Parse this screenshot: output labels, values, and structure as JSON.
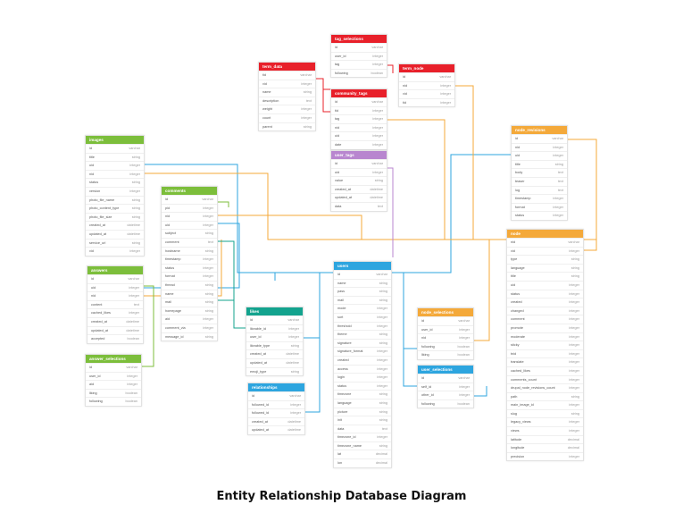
{
  "title": "Entity Relationship Database Diagram",
  "colors": {
    "red": "#e8202a",
    "green": "#7cbe3b",
    "purple": "#b886cf",
    "blue": "#2da5df",
    "teal": "#13a38e",
    "orange": "#f4a93a"
  },
  "tables": [
    {
      "name": "tag_selections",
      "color": "red",
      "fields": [
        [
          "id",
          "varchar"
        ],
        [
          "user_id",
          "integer"
        ],
        [
          "tag",
          "integer"
        ],
        [
          "following",
          "boolean"
        ]
      ]
    },
    {
      "name": "term_data",
      "color": "red",
      "fields": [
        [
          "tid",
          "varchar"
        ],
        [
          "vid",
          "integer"
        ],
        [
          "name",
          "string"
        ],
        [
          "description",
          "text"
        ],
        [
          "weight",
          "integer"
        ],
        [
          "count",
          "integer"
        ],
        [
          "parent",
          "string"
        ]
      ]
    },
    {
      "name": "community_tags",
      "color": "red",
      "fields": [
        [
          "id",
          "varchar"
        ],
        [
          "tid",
          "integer"
        ],
        [
          "tag",
          "integer"
        ],
        [
          "nid",
          "integer"
        ],
        [
          "uid",
          "integer"
        ],
        [
          "date",
          "integer"
        ]
      ]
    },
    {
      "name": "term_node",
      "color": "red",
      "fields": [
        [
          "id",
          "varchar"
        ],
        [
          "nid",
          "integer"
        ],
        [
          "vid",
          "integer"
        ],
        [
          "tid",
          "integer"
        ]
      ]
    },
    {
      "name": "node_revisions",
      "color": "orange",
      "fields": [
        [
          "id",
          "varchar"
        ],
        [
          "nid",
          "integer"
        ],
        [
          "uid",
          "integer"
        ],
        [
          "title",
          "string"
        ],
        [
          "body",
          "text"
        ],
        [
          "teaser",
          "text"
        ],
        [
          "log",
          "text"
        ],
        [
          "timestamp",
          "integer"
        ],
        [
          "format",
          "integer"
        ],
        [
          "status",
          "integer"
        ]
      ]
    },
    {
      "name": "images",
      "color": "green",
      "fields": [
        [
          "id",
          "varchar"
        ],
        [
          "title",
          "string"
        ],
        [
          "uid",
          "integer"
        ],
        [
          "nid",
          "integer"
        ],
        [
          "status",
          "string"
        ],
        [
          "version",
          "integer"
        ],
        [
          "photo_file_name",
          "string"
        ],
        [
          "photo_content_type",
          "string"
        ],
        [
          "photo_file_size",
          "string"
        ],
        [
          "created_at",
          "datetime"
        ],
        [
          "updated_at",
          "datetime"
        ],
        [
          "service_url",
          "string"
        ],
        [
          "vid",
          "integer"
        ]
      ]
    },
    {
      "name": "user_tags",
      "color": "purple",
      "fields": [
        [
          "id",
          "varchar"
        ],
        [
          "uid",
          "integer"
        ],
        [
          "value",
          "string"
        ],
        [
          "created_at",
          "datetime"
        ],
        [
          "updated_at",
          "datetime"
        ],
        [
          "data",
          "text"
        ]
      ]
    },
    {
      "name": "comments",
      "color": "green",
      "fields": [
        [
          "id",
          "varchar"
        ],
        [
          "pid",
          "integer"
        ],
        [
          "nid",
          "integer"
        ],
        [
          "uid",
          "integer"
        ],
        [
          "subject",
          "string"
        ],
        [
          "comment",
          "text"
        ],
        [
          "hostname",
          "string"
        ],
        [
          "timestamp",
          "integer"
        ],
        [
          "status",
          "integer"
        ],
        [
          "format",
          "integer"
        ],
        [
          "thread",
          "string"
        ],
        [
          "name",
          "string"
        ],
        [
          "mail",
          "string"
        ],
        [
          "homepage",
          "string"
        ],
        [
          "aid",
          "integer"
        ],
        [
          "comment_via",
          "integer"
        ],
        [
          "message_id",
          "string"
        ]
      ]
    },
    {
      "name": "node",
      "color": "orange",
      "fields": [
        [
          "nid",
          "varchar"
        ],
        [
          "vid",
          "integer"
        ],
        [
          "type",
          "string"
        ],
        [
          "language",
          "string"
        ],
        [
          "title",
          "string"
        ],
        [
          "uid",
          "integer"
        ],
        [
          "status",
          "integer"
        ],
        [
          "created",
          "integer"
        ],
        [
          "changed",
          "integer"
        ],
        [
          "comment",
          "integer"
        ],
        [
          "promote",
          "integer"
        ],
        [
          "moderate",
          "integer"
        ],
        [
          "sticky",
          "integer"
        ],
        [
          "tnid",
          "integer"
        ],
        [
          "translate",
          "integer"
        ],
        [
          "cached_likes",
          "integer"
        ],
        [
          "comments_count",
          "integer"
        ],
        [
          "drupal_node_revisions_count",
          "integer"
        ],
        [
          "path",
          "string"
        ],
        [
          "main_image_id",
          "integer"
        ],
        [
          "slug",
          "string"
        ],
        [
          "legacy_views",
          "integer"
        ],
        [
          "views",
          "integer"
        ],
        [
          "latitude",
          "decimal"
        ],
        [
          "longitude",
          "decimal"
        ],
        [
          "precision",
          "integer"
        ]
      ]
    },
    {
      "name": "answers",
      "color": "green",
      "fields": [
        [
          "id",
          "varchar"
        ],
        [
          "uid",
          "integer"
        ],
        [
          "nid",
          "integer"
        ],
        [
          "content",
          "text"
        ],
        [
          "cached_likes",
          "integer"
        ],
        [
          "created_at",
          "datetime"
        ],
        [
          "updated_at",
          "datetime"
        ],
        [
          "accepted",
          "boolean"
        ]
      ]
    },
    {
      "name": "users",
      "color": "blue",
      "fields": [
        [
          "id",
          "varchar"
        ],
        [
          "name",
          "string"
        ],
        [
          "pass",
          "string"
        ],
        [
          "mail",
          "string"
        ],
        [
          "mode",
          "integer"
        ],
        [
          "sort",
          "integer"
        ],
        [
          "threshold",
          "integer"
        ],
        [
          "theme",
          "string"
        ],
        [
          "signature",
          "string"
        ],
        [
          "signature_format",
          "integer"
        ],
        [
          "created",
          "integer"
        ],
        [
          "access",
          "integer"
        ],
        [
          "login",
          "integer"
        ],
        [
          "status",
          "integer"
        ],
        [
          "timezone",
          "string"
        ],
        [
          "language",
          "string"
        ],
        [
          "picture",
          "string"
        ],
        [
          "init",
          "string"
        ],
        [
          "data",
          "text"
        ],
        [
          "timezone_id",
          "integer"
        ],
        [
          "timezone_name",
          "string"
        ],
        [
          "lat",
          "decimal"
        ],
        [
          "lon",
          "decimal"
        ]
      ]
    },
    {
      "name": "likes",
      "color": "teal",
      "fields": [
        [
          "id",
          "varchar"
        ],
        [
          "likeable_id",
          "integer"
        ],
        [
          "user_id",
          "integer"
        ],
        [
          "likeable_type",
          "string"
        ],
        [
          "created_at",
          "datetime"
        ],
        [
          "updated_at",
          "datetime"
        ],
        [
          "emoji_type",
          "string"
        ]
      ]
    },
    {
      "name": "node_selections",
      "color": "orange",
      "fields": [
        [
          "id",
          "varchar"
        ],
        [
          "user_id",
          "integer"
        ],
        [
          "nid",
          "integer"
        ],
        [
          "following",
          "boolean"
        ],
        [
          "liking",
          "boolean"
        ]
      ]
    },
    {
      "name": "answer_selections",
      "color": "green",
      "fields": [
        [
          "id",
          "varchar"
        ],
        [
          "user_id",
          "integer"
        ],
        [
          "aid",
          "integer"
        ],
        [
          "liking",
          "boolean"
        ],
        [
          "following",
          "boolean"
        ]
      ]
    },
    {
      "name": "user_selections",
      "color": "blue",
      "fields": [
        [
          "id",
          "varchar"
        ],
        [
          "self_id",
          "integer"
        ],
        [
          "other_id",
          "integer"
        ],
        [
          "following",
          "boolean"
        ]
      ]
    },
    {
      "name": "relationships",
      "color": "blue",
      "fields": [
        [
          "id",
          "varchar"
        ],
        [
          "followed_id",
          "integer"
        ],
        [
          "followed_id",
          "integer"
        ],
        [
          "created_at",
          "datetime"
        ],
        [
          "updated_at",
          "datetime"
        ]
      ]
    }
  ]
}
